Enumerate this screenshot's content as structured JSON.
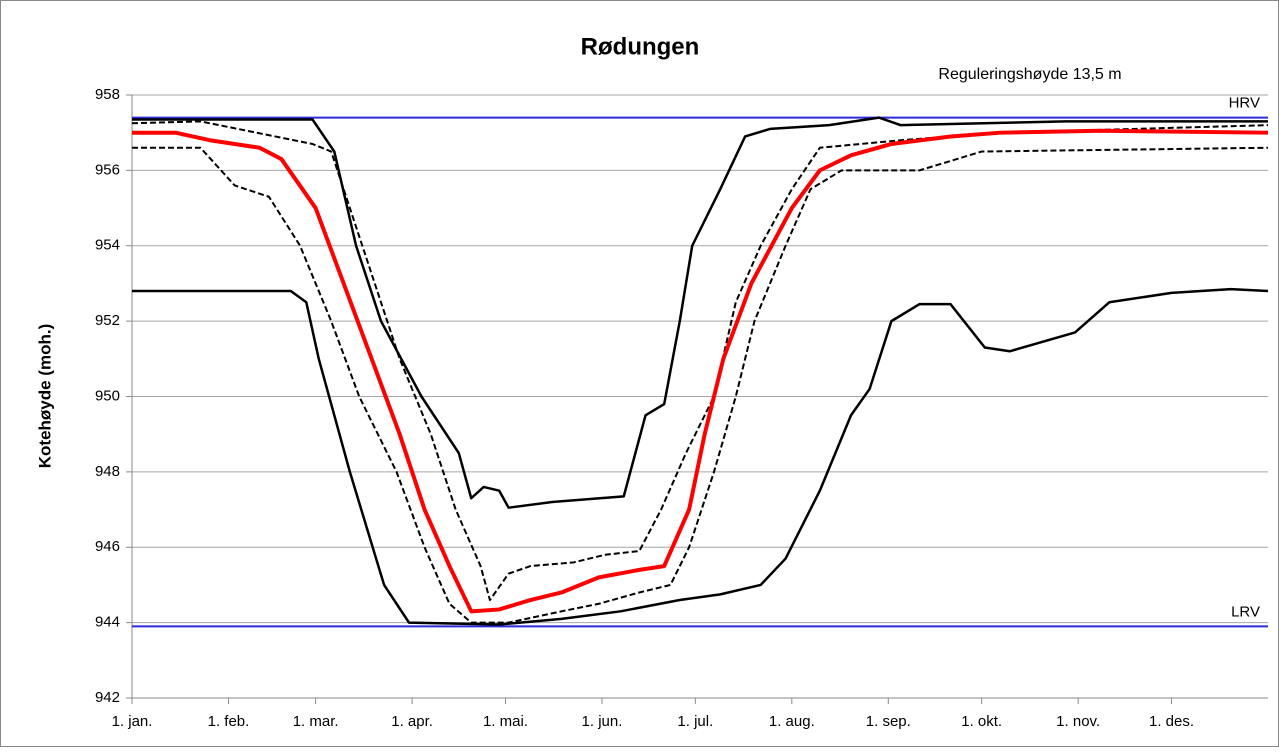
{
  "chart_data": {
    "type": "line",
    "title": "Rødungen",
    "annotation": "Reguleringshøyde  13,5 m",
    "ylabel": "Kotehøyde (moh.)",
    "xlim": [
      0,
      365
    ],
    "xticks": [
      {
        "value": 0,
        "label": "1. jan."
      },
      {
        "value": 31,
        "label": "1. feb."
      },
      {
        "value": 59,
        "label": "1. mar."
      },
      {
        "value": 90,
        "label": "1. apr."
      },
      {
        "value": 120,
        "label": "1. mai."
      },
      {
        "value": 151,
        "label": "1. jun."
      },
      {
        "value": 181,
        "label": "1. jul."
      },
      {
        "value": 212,
        "label": "1. aug."
      },
      {
        "value": 243,
        "label": "1. sep."
      },
      {
        "value": 273,
        "label": "1. okt."
      },
      {
        "value": 304,
        "label": "1. nov."
      },
      {
        "value": 334,
        "label": "1. des."
      }
    ],
    "ylim": [
      942,
      958
    ],
    "yticks": [
      942,
      944,
      946,
      948,
      950,
      952,
      954,
      956,
      958
    ],
    "grid": true,
    "reference_lines": [
      {
        "label": "HRV",
        "value": 957.4,
        "color": "#2b2bdc"
      },
      {
        "label": "LRV",
        "value": 943.9,
        "color": "#2b2bdc"
      }
    ],
    "series": [
      {
        "color": "#000000",
        "dash": false,
        "x": [
          0,
          58,
          65,
          72,
          80,
          93,
          105,
          109,
          113,
          118,
          121,
          135,
          158,
          165,
          171,
          176,
          180,
          189,
          197,
          205,
          224,
          240,
          247,
          300,
          365
        ],
        "values": [
          957.35,
          957.35,
          956.5,
          954,
          952,
          950,
          948.5,
          947.3,
          947.6,
          947.5,
          947.05,
          947.2,
          947.35,
          949.5,
          949.8,
          952,
          954,
          955.5,
          956.9,
          957.1,
          957.2,
          957.4,
          957.2,
          957.3,
          957.3
        ]
      },
      {
        "color": "#000000",
        "dash": true,
        "x": [
          0,
          22,
          58,
          64,
          70,
          78,
          86,
          96,
          104,
          112,
          115,
          121,
          128,
          142,
          152,
          163,
          170,
          178,
          187,
          194,
          202,
          212,
          221,
          247,
          279,
          365
        ],
        "values": [
          957.25,
          957.3,
          956.7,
          956.5,
          955,
          953,
          951,
          949,
          947,
          945.5,
          944.6,
          945.3,
          945.5,
          945.6,
          945.8,
          945.9,
          947,
          948.5,
          950,
          952.5,
          954,
          955.5,
          956.6,
          956.8,
          957,
          957.2
        ]
      },
      {
        "color": "#ff0000",
        "dash": false,
        "x": [
          0,
          14,
          25,
          41,
          48,
          59,
          68,
          77,
          86,
          94,
          102,
          109,
          118,
          128,
          138,
          150,
          163,
          171,
          179,
          184,
          190,
          199,
          212,
          221,
          231,
          244,
          263,
          279,
          311,
          365
        ],
        "values": [
          957,
          957,
          956.8,
          956.6,
          956.3,
          955,
          953,
          951,
          949,
          947,
          945.5,
          944.3,
          944.35,
          944.6,
          944.8,
          945.2,
          945.4,
          945.5,
          947,
          949,
          951,
          953,
          955,
          956,
          956.4,
          956.7,
          956.9,
          957,
          957.05,
          957
        ]
      },
      {
        "color": "#000000",
        "dash": true,
        "x": [
          0,
          22,
          33,
          44,
          54,
          64,
          73,
          85,
          94,
          102,
          109,
          121,
          138,
          150,
          163,
          173,
          179,
          187,
          194,
          200,
          210,
          218,
          228,
          253,
          273,
          365
        ],
        "values": [
          956.6,
          956.6,
          955.6,
          955.3,
          954,
          952,
          950,
          948,
          946,
          944.5,
          944,
          944,
          944.3,
          944.5,
          944.8,
          945,
          946,
          948,
          950,
          952,
          954,
          955.5,
          956,
          956,
          956.5,
          956.6
        ]
      },
      {
        "color": "#000000",
        "dash": false,
        "x": [
          0,
          51,
          56,
          60,
          70,
          81,
          89,
          118,
          138,
          157,
          176,
          189,
          202,
          210,
          221,
          231,
          237,
          244,
          253,
          263,
          274,
          282,
          303,
          314,
          334,
          353,
          365
        ],
        "values": [
          952.8,
          952.8,
          952.5,
          951,
          948,
          945,
          944,
          943.95,
          944.1,
          944.3,
          944.6,
          944.75,
          945,
          945.7,
          947.5,
          949.5,
          950.2,
          952,
          952.45,
          952.45,
          951.3,
          951.2,
          951.7,
          952.5,
          952.75,
          952.85,
          952.8
        ]
      }
    ]
  }
}
